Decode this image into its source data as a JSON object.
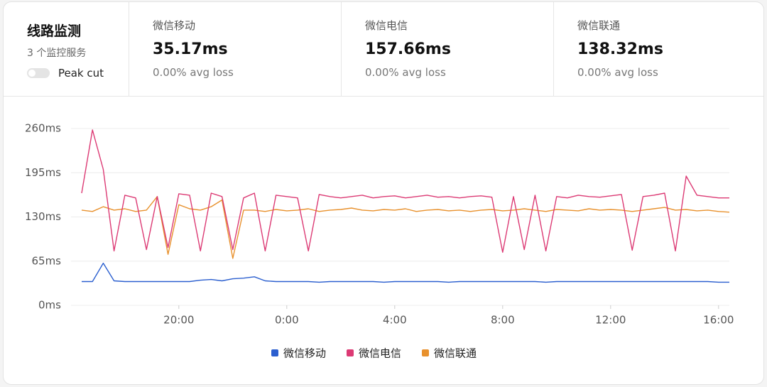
{
  "header": {
    "title": "线路监测",
    "subtitle": "3 个监控服务",
    "toggle_label": "Peak cut"
  },
  "stats": [
    {
      "name": "微信移动",
      "value": "35.17ms",
      "loss": "0.00% avg loss"
    },
    {
      "name": "微信电信",
      "value": "157.66ms",
      "loss": "0.00% avg loss"
    },
    {
      "name": "微信联通",
      "value": "138.32ms",
      "loss": "0.00% avg loss"
    }
  ],
  "chart_data": {
    "type": "line",
    "x": [
      16.4,
      16.8,
      17.2,
      17.6,
      18.0,
      18.4,
      18.8,
      19.2,
      19.6,
      20.0,
      20.4,
      20.8,
      21.2,
      21.6,
      22.0,
      22.4,
      22.8,
      23.2,
      23.6,
      24.0,
      24.4,
      24.8,
      25.2,
      25.6,
      26.0,
      26.4,
      26.8,
      27.2,
      27.6,
      28.0,
      28.4,
      28.8,
      29.2,
      29.6,
      30.0,
      30.4,
      30.8,
      31.2,
      31.6,
      32.0,
      32.4,
      32.8,
      33.2,
      33.6,
      34.0,
      34.4,
      34.8,
      35.2,
      35.6,
      36.0,
      36.4,
      36.8,
      37.2,
      37.6,
      38.0,
      38.4,
      38.8,
      39.2,
      39.6,
      40.0,
      40.4
    ],
    "xlim": [
      16.4,
      40.4
    ],
    "xticks": [
      {
        "value": 20,
        "label": "20:00"
      },
      {
        "value": 24,
        "label": "0:00"
      },
      {
        "value": 28,
        "label": "4:00"
      },
      {
        "value": 32,
        "label": "8:00"
      },
      {
        "value": 36,
        "label": "12:00"
      },
      {
        "value": 40,
        "label": "16:00"
      }
    ],
    "ylim": [
      0,
      260
    ],
    "yticks": [
      {
        "value": 0,
        "label": "0ms"
      },
      {
        "value": 65,
        "label": "65ms"
      },
      {
        "value": 130,
        "label": "130ms"
      },
      {
        "value": 195,
        "label": "195ms"
      },
      {
        "value": 260,
        "label": "260ms"
      }
    ],
    "grid": true,
    "series": [
      {
        "name": "微信移动",
        "color": "#2b5fcf",
        "values": [
          35,
          35,
          62,
          36,
          35,
          35,
          35,
          35,
          35,
          35,
          35,
          37,
          38,
          36,
          39,
          40,
          42,
          36,
          35,
          35,
          35,
          35,
          34,
          35,
          35,
          35,
          35,
          35,
          34,
          35,
          35,
          35,
          35,
          35,
          34,
          35,
          35,
          35,
          35,
          35,
          35,
          35,
          35,
          34,
          35,
          35,
          35,
          35,
          35,
          35,
          35,
          35,
          35,
          35,
          35,
          35,
          35,
          35,
          35,
          34,
          34
        ]
      },
      {
        "name": "微信电信",
        "color": "#dc3a74",
        "values": [
          165,
          258,
          200,
          80,
          162,
          158,
          82,
          160,
          85,
          164,
          162,
          80,
          165,
          160,
          82,
          158,
          165,
          80,
          162,
          160,
          158,
          80,
          163,
          160,
          158,
          160,
          162,
          158,
          160,
          161,
          158,
          160,
          162,
          159,
          160,
          158,
          160,
          161,
          159,
          78,
          160,
          82,
          162,
          80,
          160,
          158,
          162,
          160,
          159,
          161,
          163,
          81,
          160,
          162,
          165,
          80,
          190,
          162,
          160,
          158,
          158
        ]
      },
      {
        "name": "微信联通",
        "color": "#e8912d",
        "values": [
          140,
          138,
          145,
          140,
          142,
          138,
          140,
          160,
          75,
          148,
          142,
          140,
          145,
          155,
          69,
          140,
          140,
          138,
          141,
          139,
          140,
          142,
          138,
          140,
          141,
          143,
          140,
          139,
          141,
          140,
          142,
          138,
          140,
          141,
          139,
          140,
          138,
          140,
          141,
          139,
          140,
          142,
          140,
          138,
          141,
          140,
          139,
          142,
          140,
          141,
          140,
          138,
          140,
          142,
          144,
          140,
          141,
          139,
          140,
          138,
          137
        ]
      }
    ]
  }
}
